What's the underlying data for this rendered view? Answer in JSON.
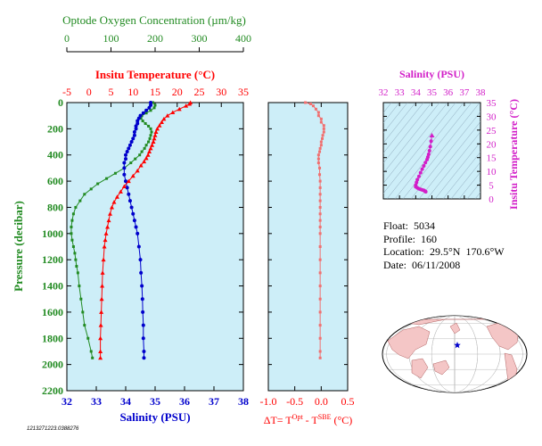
{
  "colors": {
    "temperature": "#ff0000",
    "salinity": "#0000cc",
    "oxygen": "#228b22",
    "delta_t": "#f07070",
    "theta_s": "#d21ec8",
    "panel_bg": "#cdeef8",
    "map_land": "#f4c6c6",
    "map_float": "#0000cc"
  },
  "profile_panel": {
    "oxygen_axis_title": "Optode Oxygen Concentration (µm/kg)",
    "oxygen_ticks": [
      "0",
      "100",
      "200",
      "300",
      "400"
    ],
    "temperature_axis_title": "Insitu Temperature (°C)",
    "temperature_ticks": [
      "-5",
      "0",
      "5",
      "10",
      "15",
      "20",
      "25",
      "30",
      "35"
    ],
    "pressure_axis_title": "Pressure (decibar)",
    "pressure_ticks": [
      "0",
      "200",
      "400",
      "600",
      "800",
      "1000",
      "1200",
      "1400",
      "1600",
      "1800",
      "2000",
      "2200"
    ],
    "salinity_axis_title": "Salinity (PSU)",
    "salinity_ticks": [
      "32",
      "33",
      "34",
      "35",
      "36",
      "37",
      "38"
    ]
  },
  "delta_panel": {
    "ticks": [
      "-1.0",
      "-0.5",
      "0.0",
      "0.5"
    ],
    "axis_title_prefix": "ΔT= T",
    "sup_opt": "Opt",
    "minus": " - T",
    "sup_sbe": "SBE",
    "units": " (°C)"
  },
  "ts_panel": {
    "salinity_title": "Salinity (PSU)",
    "salinity_ticks": [
      "32",
      "33",
      "34",
      "35",
      "36",
      "37",
      "38"
    ],
    "temperature_title": "Insitu Temperature (°C)",
    "temperature_ticks": [
      "0",
      "5",
      "10",
      "15",
      "20",
      "25",
      "30",
      "35"
    ]
  },
  "float_info": {
    "float_label": "Float:",
    "float_value": "5034",
    "profile_label": "Profile:",
    "profile_value": "160",
    "location_label": "Location:",
    "location_value": "29.5°N  170.6°W",
    "date_label": "Date:",
    "date_value": "06/11/2008"
  },
  "file_stamp": "1213271223.0388276",
  "chart_data": [
    {
      "type": "line",
      "title": "",
      "ylabel": "Pressure (decibar)",
      "ylim": [
        0,
        2200
      ],
      "y_inverted": true,
      "series": [
        {
          "name": "Insitu Temperature (°C)",
          "axis": "top",
          "xlim": [
            -5,
            35
          ],
          "points": [
            [
              23,
              0
            ],
            [
              22.8,
              10
            ],
            [
              22,
              25
            ],
            [
              20.5,
              50
            ],
            [
              19,
              75
            ],
            [
              17.8,
              100
            ],
            [
              17,
              125
            ],
            [
              16.5,
              150
            ],
            [
              16,
              175
            ],
            [
              15.5,
              200
            ],
            [
              15.2,
              225
            ],
            [
              15,
              250
            ],
            [
              14.8,
              275
            ],
            [
              14.6,
              300
            ],
            [
              14.3,
              325
            ],
            [
              14.0,
              350
            ],
            [
              13.7,
              375
            ],
            [
              13.4,
              400
            ],
            [
              13.0,
              425
            ],
            [
              12.5,
              450
            ],
            [
              11.8,
              480
            ],
            [
              11,
              520
            ],
            [
              10,
              560
            ],
            [
              9,
              600
            ],
            [
              8,
              640
            ],
            [
              7.2,
              680
            ],
            [
              6.4,
              720
            ],
            [
              5.7,
              760
            ],
            [
              5.2,
              800
            ],
            [
              4.8,
              850
            ],
            [
              4.5,
              900
            ],
            [
              4.2,
              950
            ],
            [
              3.9,
              1000
            ],
            [
              3.7,
              1050
            ],
            [
              3.5,
              1100
            ],
            [
              3.3,
              1200
            ],
            [
              3.1,
              1300
            ],
            [
              3.0,
              1400
            ],
            [
              2.9,
              1500
            ],
            [
              2.8,
              1600
            ],
            [
              2.7,
              1700
            ],
            [
              2.6,
              1800
            ],
            [
              2.6,
              1900
            ],
            [
              2.6,
              1950
            ]
          ]
        },
        {
          "name": "Salinity (PSU)",
          "axis": "bottom",
          "xlim": [
            32,
            38
          ],
          "points": [
            [
              34.85,
              0
            ],
            [
              34.85,
              20
            ],
            [
              34.8,
              40
            ],
            [
              34.7,
              60
            ],
            [
              34.6,
              80
            ],
            [
              34.5,
              100
            ],
            [
              34.45,
              120
            ],
            [
              34.4,
              140
            ],
            [
              34.4,
              160
            ],
            [
              34.35,
              180
            ],
            [
              34.35,
              200
            ],
            [
              34.3,
              225
            ],
            [
              34.3,
              250
            ],
            [
              34.25,
              275
            ],
            [
              34.2,
              300
            ],
            [
              34.15,
              325
            ],
            [
              34.1,
              350
            ],
            [
              34.05,
              375
            ],
            [
              34.0,
              400
            ],
            [
              34.0,
              430
            ],
            [
              33.95,
              460
            ],
            [
              33.95,
              500
            ],
            [
              33.95,
              550
            ],
            [
              34.0,
              600
            ],
            [
              34.05,
              650
            ],
            [
              34.1,
              700
            ],
            [
              34.15,
              750
            ],
            [
              34.2,
              800
            ],
            [
              34.25,
              850
            ],
            [
              34.3,
              900
            ],
            [
              34.35,
              950
            ],
            [
              34.4,
              1000
            ],
            [
              34.45,
              1100
            ],
            [
              34.5,
              1200
            ],
            [
              34.52,
              1300
            ],
            [
              34.55,
              1400
            ],
            [
              34.57,
              1500
            ],
            [
              34.58,
              1600
            ],
            [
              34.6,
              1700
            ],
            [
              34.6,
              1800
            ],
            [
              34.62,
              1900
            ],
            [
              34.62,
              1950
            ]
          ]
        },
        {
          "name": "Optode Oxygen Concentration (µm/kg)",
          "axis": "top2",
          "xlim": [
            0,
            400
          ],
          "points": [
            [
              195,
              0
            ],
            [
              200,
              20
            ],
            [
              198,
              40
            ],
            [
              190,
              60
            ],
            [
              180,
              80
            ],
            [
              170,
              100
            ],
            [
              168,
              120
            ],
            [
              172,
              140
            ],
            [
              178,
              160
            ],
            [
              185,
              180
            ],
            [
              190,
              200
            ],
            [
              192,
              225
            ],
            [
              190,
              250
            ],
            [
              188,
              275
            ],
            [
              185,
              300
            ],
            [
              180,
              325
            ],
            [
              176,
              350
            ],
            [
              170,
              375
            ],
            [
              165,
              400
            ],
            [
              155,
              430
            ],
            [
              145,
              460
            ],
            [
              130,
              500
            ],
            [
              110,
              540
            ],
            [
              90,
              580
            ],
            [
              70,
              620
            ],
            [
              55,
              660
            ],
            [
              40,
              700
            ],
            [
              30,
              750
            ],
            [
              20,
              800
            ],
            [
              15,
              850
            ],
            [
              12,
              900
            ],
            [
              10,
              950
            ],
            [
              10,
              1000
            ],
            [
              12,
              1050
            ],
            [
              15,
              1100
            ],
            [
              18,
              1150
            ],
            [
              20,
              1200
            ],
            [
              22,
              1250
            ],
            [
              25,
              1300
            ],
            [
              28,
              1400
            ],
            [
              32,
              1500
            ],
            [
              36,
              1600
            ],
            [
              40,
              1700
            ],
            [
              48,
              1800
            ],
            [
              55,
              1900
            ],
            [
              58,
              1950
            ]
          ]
        }
      ]
    },
    {
      "type": "scatter",
      "title": "",
      "xlabel": "ΔT= T^Opt - T^SBE (°C)",
      "xlim": [
        -1.0,
        0.5
      ],
      "ylim": [
        0,
        2200
      ],
      "y_inverted": true,
      "series": [
        {
          "points": [
            [
              -0.3,
              0
            ],
            [
              -0.2,
              10
            ],
            [
              -0.15,
              25
            ],
            [
              -0.1,
              50
            ],
            [
              -0.05,
              75
            ],
            [
              -0.05,
              100
            ],
            [
              0.0,
              125
            ],
            [
              0.0,
              150
            ],
            [
              0.05,
              175
            ],
            [
              0.05,
              200
            ],
            [
              0.05,
              225
            ],
            [
              0.03,
              250
            ],
            [
              0.02,
              275
            ],
            [
              0.0,
              300
            ],
            [
              0.0,
              325
            ],
            [
              -0.02,
              350
            ],
            [
              -0.03,
              375
            ],
            [
              -0.05,
              400
            ],
            [
              -0.05,
              430
            ],
            [
              -0.05,
              460
            ],
            [
              -0.03,
              500
            ],
            [
              -0.03,
              550
            ],
            [
              -0.02,
              600
            ],
            [
              -0.02,
              650
            ],
            [
              -0.02,
              700
            ],
            [
              -0.02,
              750
            ],
            [
              -0.02,
              800
            ],
            [
              -0.02,
              850
            ],
            [
              -0.02,
              900
            ],
            [
              -0.02,
              950
            ],
            [
              -0.02,
              1000
            ],
            [
              -0.02,
              1100
            ],
            [
              -0.02,
              1200
            ],
            [
              -0.02,
              1300
            ],
            [
              -0.02,
              1400
            ],
            [
              -0.02,
              1500
            ],
            [
              -0.02,
              1600
            ],
            [
              -0.02,
              1700
            ],
            [
              -0.02,
              1800
            ],
            [
              -0.02,
              1900
            ],
            [
              -0.02,
              1950
            ]
          ]
        }
      ]
    },
    {
      "type": "line",
      "title": "",
      "xlabel": "Salinity (PSU)",
      "ylabel": "Insitu Temperature (°C)",
      "xlim": [
        32,
        38
      ],
      "ylim": [
        0,
        35
      ],
      "series": [
        {
          "points": [
            [
              35.0,
              23
            ],
            [
              34.95,
              21
            ],
            [
              34.9,
              19
            ],
            [
              34.85,
              17.5
            ],
            [
              34.8,
              16.2
            ],
            [
              34.75,
              15.2
            ],
            [
              34.7,
              14.3
            ],
            [
              34.6,
              13.2
            ],
            [
              34.5,
              12
            ],
            [
              34.4,
              10.8
            ],
            [
              34.3,
              9.5
            ],
            [
              34.2,
              8.2
            ],
            [
              34.1,
              7
            ],
            [
              34.05,
              6
            ],
            [
              34.0,
              5
            ],
            [
              34.0,
              4.4
            ],
            [
              34.1,
              4.0
            ],
            [
              34.2,
              3.7
            ],
            [
              34.3,
              3.5
            ],
            [
              34.4,
              3.3
            ],
            [
              34.5,
              3.1
            ],
            [
              34.55,
              2.9
            ],
            [
              34.6,
              2.7
            ],
            [
              34.62,
              2.6
            ]
          ]
        }
      ]
    }
  ]
}
